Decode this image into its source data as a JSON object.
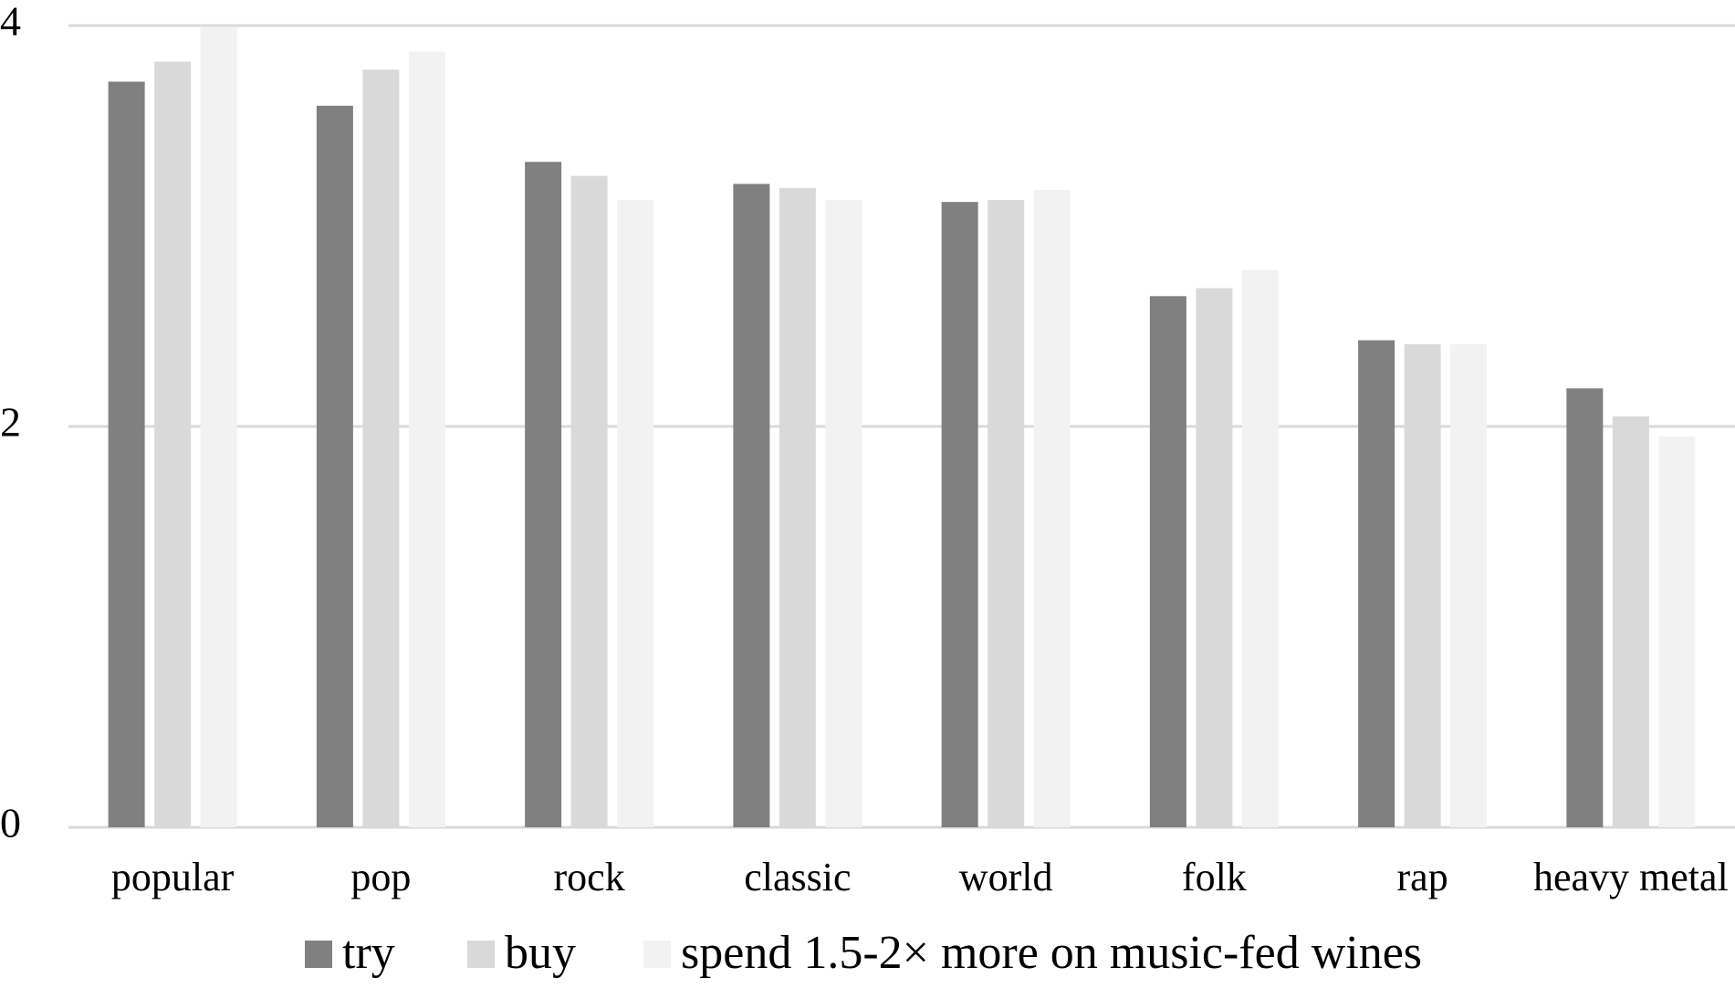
{
  "chart_data": {
    "type": "bar",
    "title": "",
    "xlabel": "",
    "ylabel": "",
    "ylim": [
      0,
      4
    ],
    "yticks": [
      0,
      2,
      4
    ],
    "grid": true,
    "legend_position": "bottom",
    "categories": [
      "popular",
      "pop",
      "rock",
      "classic",
      "world",
      "folk",
      "rap",
      "heavy metal"
    ],
    "series": [
      {
        "name": "try",
        "color": "#808080",
        "values": [
          3.72,
          3.6,
          3.32,
          3.21,
          3.12,
          2.65,
          2.43,
          2.19
        ]
      },
      {
        "name": "buy",
        "color": "#d9d9d9",
        "values": [
          3.82,
          3.78,
          3.25,
          3.19,
          3.13,
          2.69,
          2.41,
          2.05
        ]
      },
      {
        "name": "spend 1.5-2× more on music-fed wines",
        "color": "#f2f2f2",
        "values": [
          3.99,
          3.87,
          3.13,
          3.13,
          3.18,
          2.78,
          2.41,
          1.95
        ]
      }
    ]
  }
}
